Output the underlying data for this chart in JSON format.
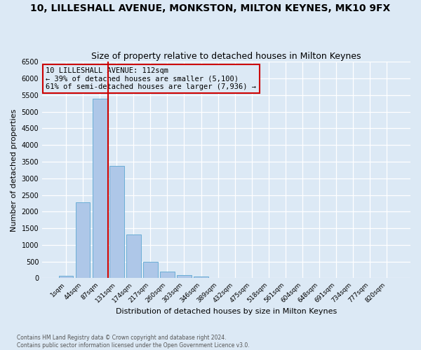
{
  "title": "10, LILLESHALL AVENUE, MONKSTON, MILTON KEYNES, MK10 9FX",
  "subtitle": "Size of property relative to detached houses in Milton Keynes",
  "xlabel": "Distribution of detached houses by size in Milton Keynes",
  "ylabel": "Number of detached properties",
  "footer_line1": "Contains HM Land Registry data © Crown copyright and database right 2024.",
  "footer_line2": "Contains public sector information licensed under the Open Government Licence v3.0.",
  "property_label": "10 LILLESHALL AVENUE: 112sqm",
  "annotation_line1": "← 39% of detached houses are smaller (5,100)",
  "annotation_line2": "61% of semi-detached houses are larger (7,936) →",
  "bar_values": [
    65,
    2280,
    5400,
    3380,
    1310,
    490,
    200,
    95,
    60,
    0,
    0,
    0,
    0,
    0,
    0,
    0,
    0,
    0,
    0,
    0
  ],
  "bar_labels": [
    "1sqm",
    "44sqm",
    "87sqm",
    "131sqm",
    "174sqm",
    "217sqm",
    "260sqm",
    "303sqm",
    "346sqm",
    "389sqm",
    "432sqm",
    "475sqm",
    "518sqm",
    "561sqm",
    "604sqm",
    "648sqm",
    "691sqm",
    "734sqm",
    "777sqm",
    "820sqm"
  ],
  "bar_color": "#aec7e8",
  "bar_edge_color": "#6baed6",
  "vline_color": "#cc0000",
  "vline_x": 2.5,
  "annotation_box_edgecolor": "#cc0000",
  "ylim_max": 6500,
  "ytick_step": 500,
  "bg_color": "#dce9f5",
  "grid_color": "#ffffff",
  "title_fontsize": 10,
  "subtitle_fontsize": 9,
  "axis_label_fontsize": 8,
  "tick_fontsize": 7,
  "annotation_fontsize": 7.5,
  "footer_fontsize": 5.5
}
